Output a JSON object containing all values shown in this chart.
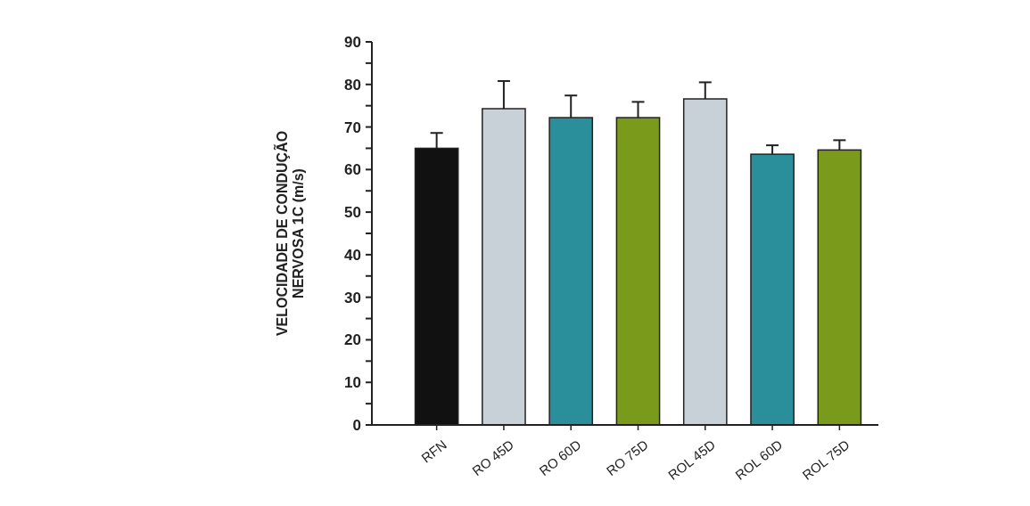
{
  "chart_data": {
    "type": "bar",
    "ylabel": "VELOCIDADE DE CONDUÇÃO\nNERVOSA 1C (m/s)",
    "categories": [
      "RFN",
      "RO 45D",
      "RO 60D",
      "RO 75D",
      "ROL 45D",
      "ROL 60D",
      "ROL 75D"
    ],
    "values": [
      65,
      74.3,
      72.2,
      72.2,
      76.6,
      63.6,
      64.6
    ],
    "errors": [
      3.6,
      6.5,
      5.2,
      3.7,
      3.9,
      2.1,
      2.3
    ],
    "colors": [
      "#111111",
      "#c8d0d8",
      "#2a8f9a",
      "#7a9a1c",
      "#c8d0d8",
      "#2a8f9a",
      "#7a9a1c"
    ],
    "ylim": [
      0,
      90
    ],
    "yticks": [
      0,
      {
        "value": 5,
        "label": null
      },
      10,
      {
        "value": 15,
        "label": null
      },
      20,
      {
        "value": 25,
        "label": null
      },
      30,
      {
        "value": 35,
        "label": null
      },
      40,
      {
        "value": 45,
        "label": null
      },
      50,
      {
        "value": 55,
        "label": null
      },
      60,
      {
        "value": 65,
        "label": null
      },
      70,
      {
        "value": 75,
        "label": null
      },
      80,
      {
        "value": 85,
        "label": null
      },
      90
    ],
    "grid": false
  }
}
